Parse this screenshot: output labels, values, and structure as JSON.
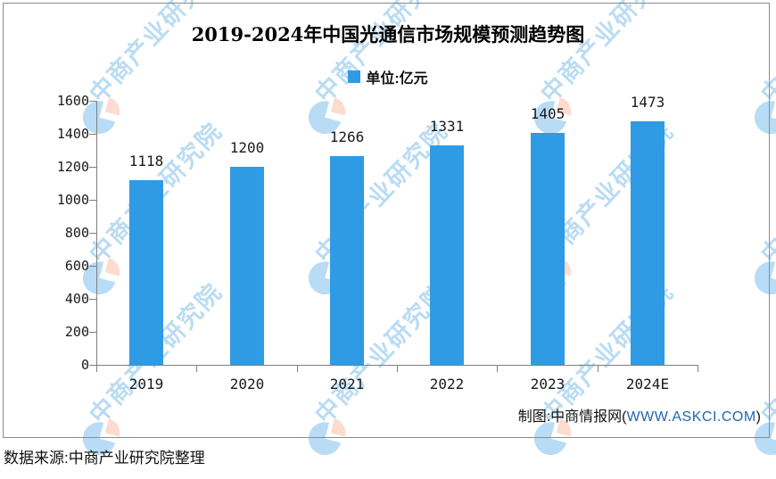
{
  "chart_data": {
    "type": "bar",
    "title": "2019-2024年中国光通信市场规模预测趋势图",
    "legend_label": "单位:亿元",
    "categories": [
      "2019",
      "2020",
      "2021",
      "2022",
      "2023",
      "2024E"
    ],
    "values": [
      1118,
      1200,
      1266,
      1331,
      1405,
      1473
    ],
    "ylim": [
      0,
      1600
    ],
    "yticks": [
      0,
      200,
      400,
      600,
      800,
      1000,
      1200,
      1400,
      1600
    ],
    "grid": false,
    "legend_position": "top-center",
    "bar_color": "#2E9BE4",
    "axis_color": "#7f7f7f"
  },
  "footer": {
    "credit_prefix": "制图:中商情报网(",
    "credit_site": "WWW.ASKCI.COM",
    "credit_suffix": ")",
    "source": "数据来源:中商产业研究院整理"
  },
  "watermark": {
    "text": "中商产业研究院",
    "blue": "rgba(125,192,236,0.55)",
    "salmon": "rgba(246,178,148,0.45)"
  }
}
